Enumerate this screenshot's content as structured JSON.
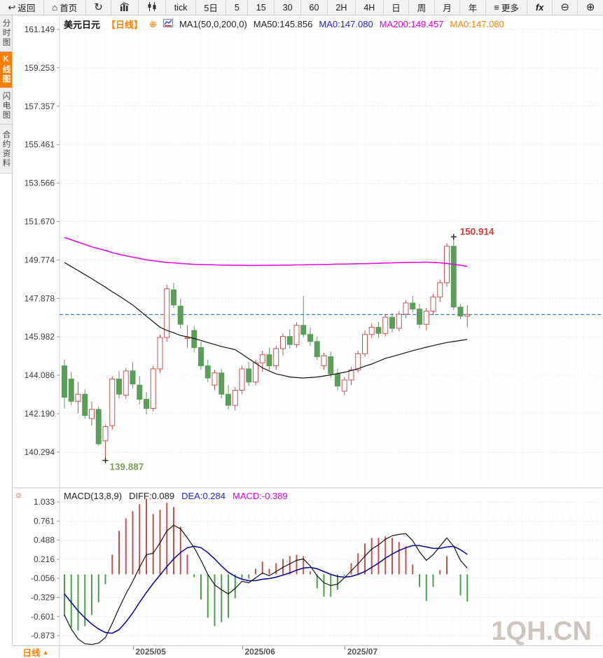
{
  "toolbar": {
    "items": [
      {
        "icon": "back-arrow-icon",
        "label": "返回"
      },
      {
        "icon": "home-icon",
        "label": "首页"
      },
      {
        "icon": "refresh-icon",
        "label": ""
      },
      {
        "icon": "trend-chart-icon",
        "label": ""
      },
      {
        "icon": "candle-chart-icon",
        "label": ""
      },
      {
        "label": "tick"
      },
      {
        "label": "5日"
      },
      {
        "label": "5"
      },
      {
        "label": "15"
      },
      {
        "label": "30"
      },
      {
        "label": "60"
      },
      {
        "label": "2H"
      },
      {
        "label": "4H"
      },
      {
        "label": "日"
      },
      {
        "label": "周"
      },
      {
        "label": "月"
      },
      {
        "label": "年"
      },
      {
        "icon": "menu-icon",
        "label": "更多"
      },
      {
        "icon": "fx-icon",
        "label": "fx"
      },
      {
        "icon": "zoom-out-icon",
        "label": ""
      },
      {
        "icon": "zoom-in-icon",
        "label": ""
      }
    ]
  },
  "sidebar": {
    "items": [
      {
        "label": "分时图",
        "active": false
      },
      {
        "label": "K线图",
        "active": true
      },
      {
        "label": "闪电图",
        "active": false
      },
      {
        "label": "合约资料",
        "active": false
      }
    ]
  },
  "price_header": {
    "symbol": "美元日元",
    "period_tag": "【日线】",
    "add_icon": "⊕",
    "ma_settings": "MA1(50,0,200,0)",
    "ma50": "MA50:145.856",
    "ma0_blue": "MA0:147.080",
    "ma200": "MA200:149.457",
    "ma0_orange": "MA0:147.080"
  },
  "macd_header": {
    "name": "MACD(13,8,9)",
    "diff": "DIFF:0.089",
    "dea": "DEA:0.284",
    "macd": "MACD:-0.389"
  },
  "bottom_bar": {
    "period_label": "日线",
    "period_arrow": "▲"
  },
  "chart_data": {
    "type": "candlestick",
    "title": "美元日元 日线 (USD/JPY daily) with MA and MACD",
    "price_axis_ticks": [
      "161.149",
      "159.253",
      "157.357",
      "155.461",
      "153.566",
      "151.670",
      "149.774",
      "147.878",
      "145.982",
      "144.086",
      "142.190",
      "140.294"
    ],
    "price_axis_range": [
      161.149,
      138.8
    ],
    "macd_axis_ticks": [
      "1.033",
      "0.761",
      "0.488",
      "0.216",
      "-0.056",
      "-0.329",
      "-0.601",
      "-0.873"
    ],
    "macd_axis_range": [
      1.033,
      -1.05
    ],
    "month_ticks": [
      {
        "index": 11,
        "label": "2025/05"
      },
      {
        "index": 27,
        "label": "2025/06"
      },
      {
        "index": 42,
        "label": "2025/07"
      }
    ],
    "high_label": "150.914",
    "high_index": 58,
    "low_label": "139.887",
    "low_index": 7,
    "last_close": 147.08,
    "watermark": "1QH.CN",
    "candles": [
      [
        144.55,
        144.85,
        142.45,
        143.0
      ],
      [
        143.9,
        144.25,
        142.6,
        142.8
      ],
      [
        142.8,
        143.75,
        142.2,
        143.15
      ],
      [
        143.15,
        143.4,
        141.95,
        142.1
      ],
      [
        141.95,
        142.8,
        141.6,
        142.4
      ],
      [
        142.4,
        142.55,
        140.6,
        140.7
      ],
      [
        140.85,
        141.65,
        139.887,
        141.55
      ],
      [
        141.6,
        144.05,
        141.4,
        143.9
      ],
      [
        143.9,
        144.3,
        142.95,
        143.15
      ],
      [
        143.1,
        144.45,
        142.9,
        144.3
      ],
      [
        144.3,
        144.7,
        143.45,
        143.65
      ],
      [
        143.6,
        144.05,
        142.65,
        142.9
      ],
      [
        142.9,
        143.25,
        142.15,
        142.45
      ],
      [
        142.45,
        144.55,
        142.3,
        144.4
      ],
      [
        144.4,
        146.1,
        144.2,
        145.95
      ],
      [
        145.95,
        148.55,
        145.75,
        148.35
      ],
      [
        148.3,
        148.65,
        147.4,
        147.55
      ],
      [
        147.5,
        147.85,
        146.4,
        146.6
      ],
      [
        145.9,
        146.55,
        145.45,
        145.95
      ],
      [
        146.3,
        146.5,
        145.25,
        145.45
      ],
      [
        145.45,
        145.75,
        144.35,
        144.55
      ],
      [
        144.55,
        144.85,
        143.75,
        143.95
      ],
      [
        143.6,
        144.35,
        143.35,
        144.2
      ],
      [
        144.2,
        144.4,
        142.95,
        143.15
      ],
      [
        143.15,
        143.6,
        142.4,
        142.6
      ],
      [
        142.6,
        143.5,
        142.35,
        143.35
      ],
      [
        143.35,
        144.55,
        143.15,
        144.4
      ],
      [
        144.4,
        144.75,
        143.55,
        143.75
      ],
      [
        143.75,
        144.85,
        143.6,
        144.7
      ],
      [
        144.7,
        145.3,
        144.25,
        145.1
      ],
      [
        145.1,
        145.45,
        144.35,
        144.55
      ],
      [
        144.55,
        145.55,
        144.35,
        145.4
      ],
      [
        145.4,
        146.15,
        145.05,
        146.0
      ],
      [
        146.0,
        146.35,
        145.4,
        145.6
      ],
      [
        145.6,
        146.7,
        145.45,
        146.55
      ],
      [
        146.55,
        148.0,
        145.95,
        146.1
      ],
      [
        146.1,
        146.45,
        145.55,
        145.75
      ],
      [
        145.75,
        146.0,
        144.85,
        145.0
      ],
      [
        144.55,
        145.2,
        144.35,
        145.05
      ],
      [
        145.0,
        145.25,
        143.95,
        144.15
      ],
      [
        144.15,
        144.4,
        143.35,
        143.55
      ],
      [
        143.3,
        144.0,
        143.1,
        143.85
      ],
      [
        143.85,
        144.5,
        143.6,
        144.35
      ],
      [
        144.35,
        145.3,
        144.2,
        145.15
      ],
      [
        145.15,
        146.3,
        145.0,
        146.1
      ],
      [
        146.1,
        146.65,
        145.9,
        146.45
      ],
      [
        146.45,
        146.7,
        145.95,
        146.15
      ],
      [
        146.15,
        147.1,
        146.0,
        146.95
      ],
      [
        146.95,
        147.15,
        146.2,
        146.4
      ],
      [
        146.4,
        147.25,
        146.25,
        147.1
      ],
      [
        147.1,
        147.8,
        146.9,
        147.65
      ],
      [
        147.65,
        148.0,
        147.2,
        147.35
      ],
      [
        147.35,
        147.6,
        146.4,
        146.6
      ],
      [
        146.6,
        147.4,
        146.3,
        147.25
      ],
      [
        147.25,
        148.1,
        147.05,
        147.95
      ],
      [
        147.95,
        148.8,
        147.7,
        148.65
      ],
      [
        148.65,
        150.6,
        148.45,
        150.45
      ],
      [
        150.45,
        150.914,
        147.3,
        147.45
      ],
      [
        147.45,
        147.6,
        146.85,
        147.0
      ],
      [
        147.0,
        147.55,
        146.45,
        147.08
      ]
    ],
    "ma50": [
      149.65,
      149.45,
      149.25,
      149.05,
      148.85,
      148.64,
      148.43,
      148.21,
      148.0,
      147.78,
      147.55,
      147.28,
      147.0,
      146.73,
      146.45,
      146.3,
      146.18,
      146.05,
      145.98,
      145.9,
      145.8,
      145.7,
      145.6,
      145.5,
      145.43,
      145.35,
      145.13,
      144.9,
      144.68,
      144.45,
      144.3,
      144.15,
      144.08,
      144.0,
      143.97,
      143.95,
      143.97,
      144.0,
      144.05,
      144.1,
      144.17,
      144.23,
      144.32,
      144.41,
      144.53,
      144.64,
      144.78,
      144.92,
      145.01,
      145.1,
      145.2,
      145.3,
      145.38,
      145.47,
      145.55,
      145.63,
      145.7,
      145.75,
      145.8,
      145.856
    ],
    "ma200": [
      150.88,
      150.77,
      150.65,
      150.54,
      150.42,
      150.33,
      150.24,
      150.14,
      150.05,
      149.98,
      149.91,
      149.85,
      149.78,
      149.74,
      149.69,
      149.65,
      149.63,
      149.6,
      149.58,
      149.56,
      149.55,
      149.54,
      149.53,
      149.52,
      149.52,
      149.51,
      149.51,
      149.5,
      149.5,
      149.51,
      149.51,
      149.51,
      149.52,
      149.52,
      149.53,
      149.53,
      149.54,
      149.55,
      149.55,
      149.56,
      149.57,
      149.57,
      149.58,
      149.59,
      149.59,
      149.6,
      149.61,
      149.62,
      149.63,
      149.64,
      149.65,
      149.66,
      149.66,
      149.67,
      149.65,
      149.63,
      149.6,
      149.56,
      149.51,
      149.457
    ],
    "macd": {
      "diff": [
        -0.58,
        -0.78,
        -0.92,
        -0.99,
        -1.0,
        -0.98,
        -0.9,
        -0.7,
        -0.48,
        -0.28,
        -0.1,
        0.1,
        0.28,
        0.3,
        0.45,
        0.62,
        0.7,
        0.65,
        0.52,
        0.38,
        0.2,
        0.0,
        -0.15,
        -0.22,
        -0.28,
        -0.2,
        -0.1,
        -0.12,
        -0.05,
        0.02,
        -0.02,
        0.04,
        0.1,
        0.15,
        0.2,
        0.22,
        0.12,
        -0.02,
        -0.12,
        -0.16,
        -0.14,
        -0.05,
        0.05,
        0.15,
        0.26,
        0.36,
        0.42,
        0.5,
        0.55,
        0.57,
        0.58,
        0.48,
        0.32,
        0.2,
        0.28,
        0.4,
        0.52,
        0.4,
        0.2,
        0.089
      ],
      "dea": [
        -0.28,
        -0.4,
        -0.52,
        -0.62,
        -0.71,
        -0.78,
        -0.83,
        -0.84,
        -0.79,
        -0.68,
        -0.55,
        -0.4,
        -0.26,
        -0.13,
        -0.01,
        0.11,
        0.22,
        0.31,
        0.38,
        0.4,
        0.38,
        0.31,
        0.22,
        0.12,
        0.03,
        -0.03,
        -0.07,
        -0.09,
        -0.09,
        -0.07,
        -0.06,
        -0.04,
        -0.01,
        0.02,
        0.06,
        0.09,
        0.1,
        0.08,
        0.04,
        0.0,
        -0.03,
        -0.04,
        -0.03,
        0.0,
        0.04,
        0.1,
        0.16,
        0.23,
        0.29,
        0.34,
        0.38,
        0.41,
        0.41,
        0.39,
        0.37,
        0.37,
        0.39,
        0.4,
        0.35,
        0.284
      ]
    },
    "colors": {
      "up": "#c5524e",
      "down": "#5a9e5a",
      "hist_up": "#c5524e",
      "hist_down": "#49a049",
      "ma50_line": "#111111",
      "ma200_line": "#e600e6",
      "diff_line": "#111111",
      "dea_line": "#00009c",
      "last_price_line": "#2d86e5",
      "high_label_color": "#cf3a37",
      "low_label_color": "#7ba05b",
      "grid": "#d9d9d9",
      "grid_col": "#ececec",
      "axis_text": "#3c3c3c",
      "watermark_color": "#ccc6bf",
      "accent_orange": "#ff7e00"
    }
  }
}
